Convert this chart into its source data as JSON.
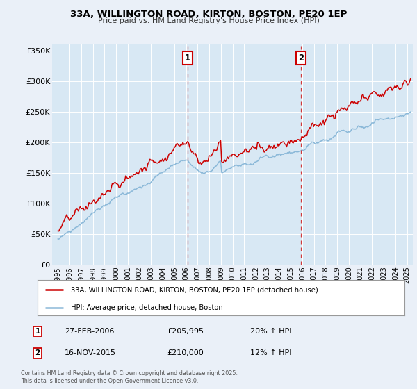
{
  "title_line1": "33A, WILLINGTON ROAD, KIRTON, BOSTON, PE20 1EP",
  "title_line2": "Price paid vs. HM Land Registry's House Price Index (HPI)",
  "bg_color": "#eaf0f8",
  "plot_bg_color": "#d8e8f4",
  "grid_color": "#ffffff",
  "red_line_color": "#cc0000",
  "blue_line_color": "#8ab8d8",
  "ylabel_ticks": [
    "£0",
    "£50K",
    "£100K",
    "£150K",
    "£200K",
    "£250K",
    "£300K",
    "£350K"
  ],
  "ytick_values": [
    0,
    50000,
    100000,
    150000,
    200000,
    250000,
    300000,
    350000
  ],
  "ylim": [
    0,
    360000
  ],
  "xlim_start": 1994.5,
  "xlim_end": 2025.5,
  "sale1_x": 2006.15,
  "sale1_y": 205995,
  "sale1_label": "1",
  "sale1_date": "27-FEB-2006",
  "sale1_price": "£205,995",
  "sale1_hpi": "20% ↑ HPI",
  "sale2_x": 2015.88,
  "sale2_y": 210000,
  "sale2_label": "2",
  "sale2_date": "16-NOV-2015",
  "sale2_price": "£210,000",
  "sale2_hpi": "12% ↑ HPI",
  "legend_line1": "33A, WILLINGTON ROAD, KIRTON, BOSTON, PE20 1EP (detached house)",
  "legend_line2": "HPI: Average price, detached house, Boston",
  "footer_line1": "Contains HM Land Registry data © Crown copyright and database right 2025.",
  "footer_line2": "This data is licensed under the Open Government Licence v3.0."
}
